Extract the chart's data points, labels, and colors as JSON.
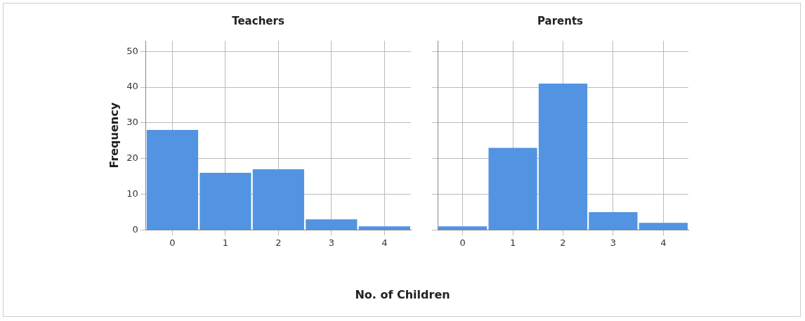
{
  "chart_data": [
    {
      "type": "bar",
      "title": "Teachers",
      "ylabel": "Frequency",
      "xlabel": "No. of Children",
      "categories": [
        "0",
        "1",
        "2",
        "3",
        "4"
      ],
      "values": [
        28,
        16,
        17,
        3,
        1
      ],
      "color": "#5294e2",
      "ylim": [
        0,
        53
      ],
      "yticks": [
        0,
        10,
        20,
        30,
        40,
        50
      ],
      "grid": true,
      "legend": false
    },
    {
      "type": "bar",
      "title": "Parents",
      "categories": [
        "0",
        "1",
        "2",
        "3",
        "4"
      ],
      "values": [
        1,
        23,
        41,
        5,
        2
      ],
      "color": "#5294e2",
      "ylim": [
        0,
        53
      ],
      "yticks": [
        0,
        10,
        20,
        30,
        40,
        50
      ],
      "grid": true,
      "legend": false,
      "tick_labels": "x"
    }
  ]
}
